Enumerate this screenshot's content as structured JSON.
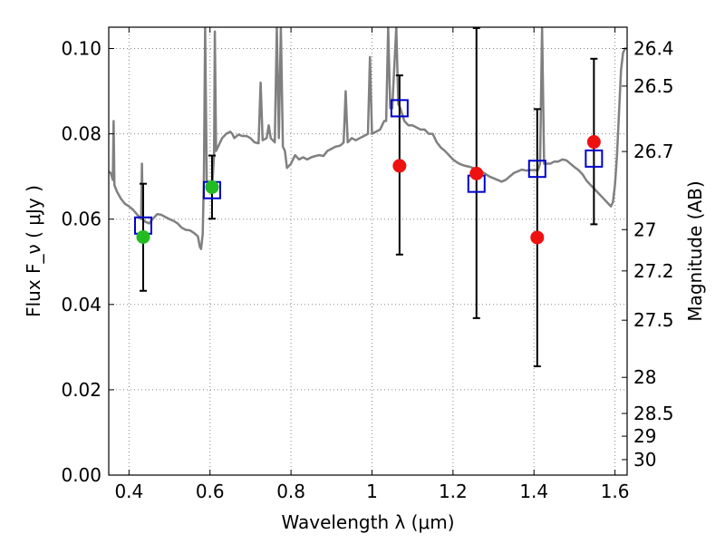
{
  "chart_data": {
    "type": "scatter",
    "title": "",
    "xlabel": "Wavelength  λ (μm)",
    "ylabel": "Flux  F_ν  ( μJy )",
    "y2label": "Magnitude (AB)",
    "xlim": [
      0.35,
      1.63
    ],
    "ylim": [
      0.0,
      0.105
    ],
    "grid": true,
    "legend": "none",
    "x_ticks": [
      0.4,
      0.6,
      0.8,
      1.0,
      1.2,
      1.4,
      1.6
    ],
    "x_tick_labels": [
      "0.4",
      "0.6",
      "0.8",
      "1",
      "1.2",
      "1.4",
      "1.6"
    ],
    "y_ticks": [
      0.0,
      0.02,
      0.04,
      0.06,
      0.08,
      0.1
    ],
    "y_tick_labels": [
      "0.00",
      "0.02",
      "0.04",
      "0.06",
      "0.08",
      "0.10"
    ],
    "y2_ticks": [
      {
        "mag": 26.4,
        "label": "26.4"
      },
      {
        "mag": 26.5,
        "label": "26.5"
      },
      {
        "mag": 26.7,
        "label": "26.7"
      },
      {
        "mag": 27.0,
        "label": "27"
      },
      {
        "mag": 27.2,
        "label": "27.2"
      },
      {
        "mag": 27.5,
        "label": "27.5"
      },
      {
        "mag": 28.0,
        "label": "28"
      },
      {
        "mag": 28.5,
        "label": "28.5"
      },
      {
        "mag": 29.0,
        "label": "29"
      },
      {
        "mag": 30.0,
        "label": "30"
      }
    ],
    "colors": {
      "model": "#808080",
      "observed_green": "#22bb22",
      "observed_red": "#ee1111",
      "synthetic": "#0000cc",
      "errorbar": "#000000",
      "grid": "#888888"
    },
    "series": [
      {
        "type": "line",
        "points": [
          [
            0.35,
            0.0712
          ],
          [
            0.355,
            0.0708
          ],
          [
            0.36,
            0.0692
          ],
          [
            0.362,
            0.083
          ],
          [
            0.364,
            0.068
          ],
          [
            0.37,
            0.0665
          ],
          [
            0.38,
            0.0648
          ],
          [
            0.39,
            0.0636
          ],
          [
            0.4,
            0.063
          ],
          [
            0.41,
            0.0622
          ],
          [
            0.42,
            0.0611
          ],
          [
            0.43,
            0.06
          ],
          [
            0.432,
            0.073
          ],
          [
            0.434,
            0.06
          ],
          [
            0.44,
            0.0594
          ],
          [
            0.45,
            0.059
          ],
          [
            0.46,
            0.0602
          ],
          [
            0.47,
            0.0612
          ],
          [
            0.48,
            0.061
          ],
          [
            0.49,
            0.0605
          ],
          [
            0.5,
            0.06
          ],
          [
            0.51,
            0.0596
          ],
          [
            0.52,
            0.059
          ],
          [
            0.53,
            0.058
          ],
          [
            0.54,
            0.0575
          ],
          [
            0.55,
            0.0574
          ],
          [
            0.56,
            0.0568
          ],
          [
            0.57,
            0.056
          ],
          [
            0.575,
            0.0535
          ],
          [
            0.578,
            0.053
          ],
          [
            0.582,
            0.0565
          ],
          [
            0.585,
            0.07
          ],
          [
            0.588,
            0.105
          ],
          [
            0.592,
            0.069
          ],
          [
            0.6,
            0.0685
          ],
          [
            0.605,
            0.067
          ],
          [
            0.61,
            0.075
          ],
          [
            0.612,
            0.104
          ],
          [
            0.615,
            0.076
          ],
          [
            0.62,
            0.077
          ],
          [
            0.63,
            0.079
          ],
          [
            0.64,
            0.08
          ],
          [
            0.65,
            0.0805
          ],
          [
            0.655,
            0.08
          ],
          [
            0.66,
            0.079
          ],
          [
            0.67,
            0.0798
          ],
          [
            0.68,
            0.0795
          ],
          [
            0.69,
            0.0795
          ],
          [
            0.7,
            0.079
          ],
          [
            0.71,
            0.078
          ],
          [
            0.72,
            0.0778
          ],
          [
            0.725,
            0.092
          ],
          [
            0.73,
            0.0785
          ],
          [
            0.74,
            0.079
          ],
          [
            0.745,
            0.082
          ],
          [
            0.75,
            0.079
          ],
          [
            0.76,
            0.078
          ],
          [
            0.765,
            0.105
          ],
          [
            0.77,
            0.079
          ],
          [
            0.775,
            0.105
          ],
          [
            0.78,
            0.077
          ],
          [
            0.785,
            0.076
          ],
          [
            0.79,
            0.072
          ],
          [
            0.8,
            0.073
          ],
          [
            0.81,
            0.075
          ],
          [
            0.82,
            0.074
          ],
          [
            0.83,
            0.0745
          ],
          [
            0.84,
            0.074
          ],
          [
            0.85,
            0.0745
          ],
          [
            0.86,
            0.0748
          ],
          [
            0.87,
            0.075
          ],
          [
            0.88,
            0.0748
          ],
          [
            0.89,
            0.076
          ],
          [
            0.9,
            0.0765
          ],
          [
            0.91,
            0.077
          ],
          [
            0.92,
            0.0772
          ],
          [
            0.925,
            0.0775
          ],
          [
            0.93,
            0.078
          ],
          [
            0.935,
            0.09
          ],
          [
            0.94,
            0.078
          ],
          [
            0.95,
            0.079
          ],
          [
            0.96,
            0.0785
          ],
          [
            0.97,
            0.079
          ],
          [
            0.98,
            0.0795
          ],
          [
            0.99,
            0.08
          ],
          [
            0.995,
            0.098
          ],
          [
            1.0,
            0.08
          ],
          [
            1.01,
            0.0805
          ],
          [
            1.02,
            0.081
          ],
          [
            1.025,
            0.082
          ],
          [
            1.03,
            0.083
          ],
          [
            1.035,
            0.083
          ],
          [
            1.04,
            0.105
          ],
          [
            1.045,
            0.086
          ],
          [
            1.05,
            0.086
          ],
          [
            1.06,
            0.105
          ],
          [
            1.065,
            0.087
          ],
          [
            1.07,
            0.086
          ],
          [
            1.08,
            0.083
          ],
          [
            1.09,
            0.082
          ],
          [
            1.1,
            0.082
          ],
          [
            1.11,
            0.0815
          ],
          [
            1.12,
            0.081
          ],
          [
            1.13,
            0.081
          ],
          [
            1.14,
            0.08
          ],
          [
            1.15,
            0.08
          ],
          [
            1.16,
            0.078
          ],
          [
            1.17,
            0.0768
          ],
          [
            1.18,
            0.076
          ],
          [
            1.19,
            0.075
          ],
          [
            1.2,
            0.074
          ],
          [
            1.21,
            0.0733
          ],
          [
            1.22,
            0.0728
          ],
          [
            1.23,
            0.0725
          ],
          [
            1.24,
            0.0723
          ],
          [
            1.25,
            0.072
          ],
          [
            1.26,
            0.0716
          ],
          [
            1.27,
            0.0712
          ],
          [
            1.28,
            0.0706
          ],
          [
            1.29,
            0.07
          ],
          [
            1.3,
            0.0696
          ],
          [
            1.31,
            0.0692
          ],
          [
            1.32,
            0.0688
          ],
          [
            1.33,
            0.0692
          ],
          [
            1.34,
            0.07
          ],
          [
            1.35,
            0.0708
          ],
          [
            1.36,
            0.0712
          ],
          [
            1.37,
            0.0716
          ],
          [
            1.38,
            0.0714
          ],
          [
            1.39,
            0.0715
          ],
          [
            1.4,
            0.0715
          ],
          [
            1.41,
            0.0715
          ],
          [
            1.415,
            0.073
          ],
          [
            1.42,
            0.105
          ],
          [
            1.425,
            0.073
          ],
          [
            1.43,
            0.073
          ],
          [
            1.44,
            0.073
          ],
          [
            1.45,
            0.0735
          ],
          [
            1.46,
            0.0735
          ],
          [
            1.47,
            0.074
          ],
          [
            1.48,
            0.0738
          ],
          [
            1.49,
            0.073
          ],
          [
            1.5,
            0.0722
          ],
          [
            1.51,
            0.0715
          ],
          [
            1.52,
            0.0705
          ],
          [
            1.53,
            0.069
          ],
          [
            1.54,
            0.068
          ],
          [
            1.55,
            0.067
          ],
          [
            1.56,
            0.066
          ],
          [
            1.57,
            0.065
          ],
          [
            1.58,
            0.064
          ],
          [
            1.59,
            0.063
          ],
          [
            1.595,
            0.064
          ],
          [
            1.6,
            0.068
          ],
          [
            1.605,
            0.075
          ],
          [
            1.61,
            0.085
          ],
          [
            1.615,
            0.095
          ],
          [
            1.62,
            0.099
          ],
          [
            1.625,
            0.1
          ],
          [
            1.63,
            0.1
          ]
        ]
      },
      {
        "type": "errorbar",
        "points": [
          {
            "x": 0.435,
            "y": 0.0558,
            "ylo": 0.0432,
            "yhi": 0.0683,
            "color": "green",
            "model": 0.0585
          },
          {
            "x": 0.605,
            "y": 0.0675,
            "ylo": 0.0601,
            "yhi": 0.0749,
            "color": "green",
            "model": 0.0668
          },
          {
            "x": 1.068,
            "y": 0.0725,
            "ylo": 0.0517,
            "yhi": 0.0937,
            "color": "red",
            "model": 0.086
          },
          {
            "x": 1.258,
            "y": 0.0707,
            "ylo": 0.0368,
            "yhi": 0.1048,
            "color": "red",
            "model": 0.0683
          },
          {
            "x": 1.408,
            "y": 0.0557,
            "ylo": 0.0255,
            "yhi": 0.0858,
            "color": "red",
            "model": 0.0718
          },
          {
            "x": 1.548,
            "y": 0.0781,
            "ylo": 0.0588,
            "yhi": 0.0976,
            "color": "red",
            "model": 0.0742
          }
        ]
      }
    ]
  }
}
